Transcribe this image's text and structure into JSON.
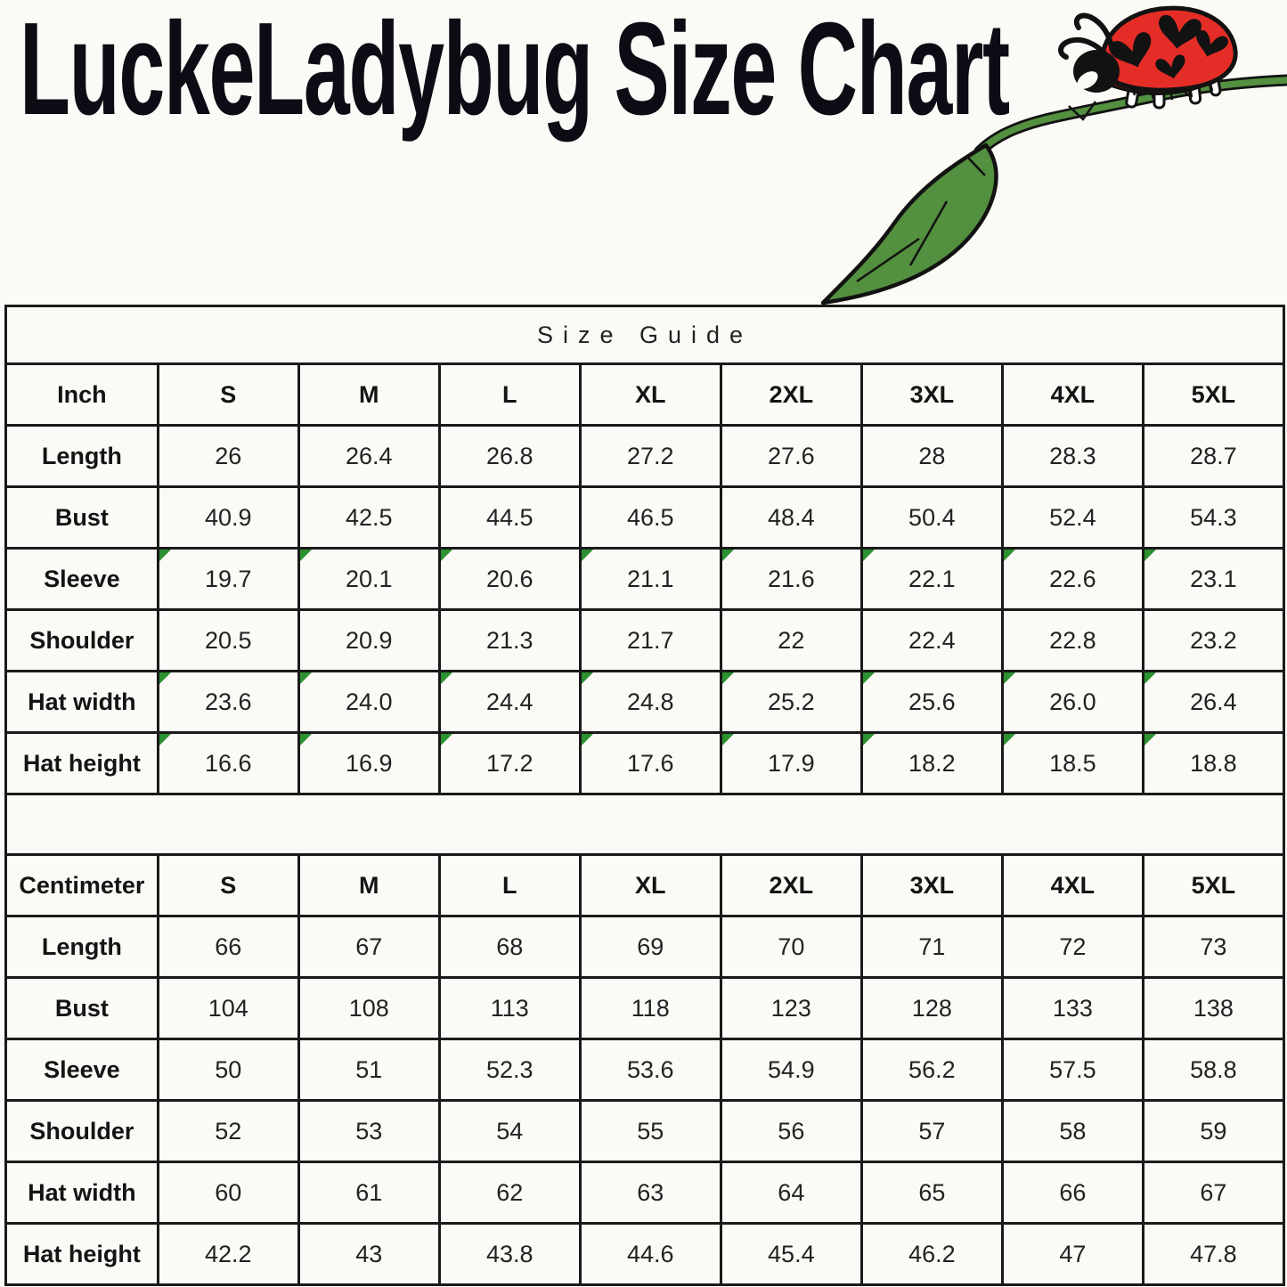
{
  "page": {
    "background_color": "#fbfaf6"
  },
  "header": {
    "title": "LuckeLadybug Size Chart",
    "illustration": {
      "icon": "ladybug-on-leaf",
      "ladybug_red": "#e42d26",
      "belly_brown": "#4f170e",
      "leaf_green": "#53903f",
      "outline_black": "#121212",
      "heart_spots_count": 4
    }
  },
  "size_chart": {
    "caption": "Size Guide",
    "columns": [
      "S",
      "M",
      "L",
      "XL",
      "2XL",
      "3XL",
      "4XL",
      "5XL"
    ],
    "flag_color": "#2c9130",
    "sections": [
      {
        "unit_label": "Inch",
        "rows": [
          {
            "label": "Length",
            "values": [
              "26",
              "26.4",
              "26.8",
              "27.2",
              "27.6",
              "28",
              "28.3",
              "28.7"
            ],
            "flagged": false
          },
          {
            "label": "Bust",
            "values": [
              "40.9",
              "42.5",
              "44.5",
              "46.5",
              "48.4",
              "50.4",
              "52.4",
              "54.3"
            ],
            "flagged": false
          },
          {
            "label": "Sleeve",
            "values": [
              "19.7",
              "20.1",
              "20.6",
              "21.1",
              "21.6",
              "22.1",
              "22.6",
              "23.1"
            ],
            "flagged": true
          },
          {
            "label": "Shoulder",
            "values": [
              "20.5",
              "20.9",
              "21.3",
              "21.7",
              "22",
              "22.4",
              "22.8",
              "23.2"
            ],
            "flagged": false
          },
          {
            "label": "Hat width",
            "values": [
              "23.6",
              "24.0",
              "24.4",
              "24.8",
              "25.2",
              "25.6",
              "26.0",
              "26.4"
            ],
            "flagged": true
          },
          {
            "label": "Hat height",
            "values": [
              "16.6",
              "16.9",
              "17.2",
              "17.6",
              "17.9",
              "18.2",
              "18.5",
              "18.8"
            ],
            "flagged": true
          }
        ]
      },
      {
        "unit_label": "Centimeter",
        "rows": [
          {
            "label": "Length",
            "values": [
              "66",
              "67",
              "68",
              "69",
              "70",
              "71",
              "72",
              "73"
            ],
            "flagged": false
          },
          {
            "label": "Bust",
            "values": [
              "104",
              "108",
              "113",
              "118",
              "123",
              "128",
              "133",
              "138"
            ],
            "flagged": false
          },
          {
            "label": "Sleeve",
            "values": [
              "50",
              "51",
              "52.3",
              "53.6",
              "54.9",
              "56.2",
              "57.5",
              "58.8"
            ],
            "flagged": false
          },
          {
            "label": "Shoulder",
            "values": [
              "52",
              "53",
              "54",
              "55",
              "56",
              "57",
              "58",
              "59"
            ],
            "flagged": false
          },
          {
            "label": "Hat width",
            "values": [
              "60",
              "61",
              "62",
              "63",
              "64",
              "65",
              "66",
              "67"
            ],
            "flagged": false
          },
          {
            "label": "Hat height",
            "values": [
              "42.2",
              "43",
              "43.8",
              "44.6",
              "45.4",
              "46.2",
              "47",
              "47.8"
            ],
            "flagged": false
          }
        ]
      }
    ]
  }
}
